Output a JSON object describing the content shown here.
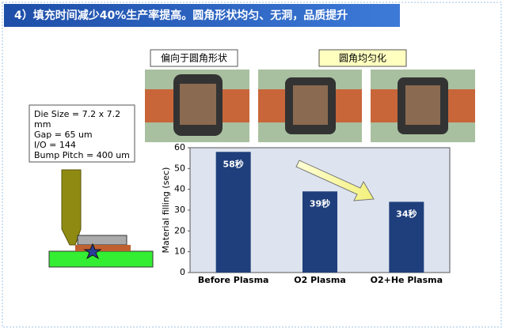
{
  "header": {
    "title": "4）填充时间减少40%生产率提高。圆角形状均匀、无洞，品质提升"
  },
  "photo_labels": [
    "偏向于圆角形状",
    "圆角均匀化"
  ],
  "die_info": [
    "Die Size = 7.2 x 7.2",
    "mm",
    "Gap = 65 um",
    "I/O =  144",
    "Bump Pitch =  400 um"
  ],
  "chart_data": {
    "type": "bar",
    "y_label": "Material filling  (sec)",
    "categories": [
      "Before Plasma",
      "O2 Plasma",
      "O2+He Plasma"
    ],
    "values": [
      58,
      39,
      34
    ],
    "value_labels": [
      "58秒",
      "39秒",
      "34秒"
    ],
    "color": "#1f3f7c",
    "ylim": [
      0,
      60
    ],
    "yticks": [
      0,
      10,
      20,
      30,
      40,
      50,
      60
    ],
    "grid": false
  }
}
